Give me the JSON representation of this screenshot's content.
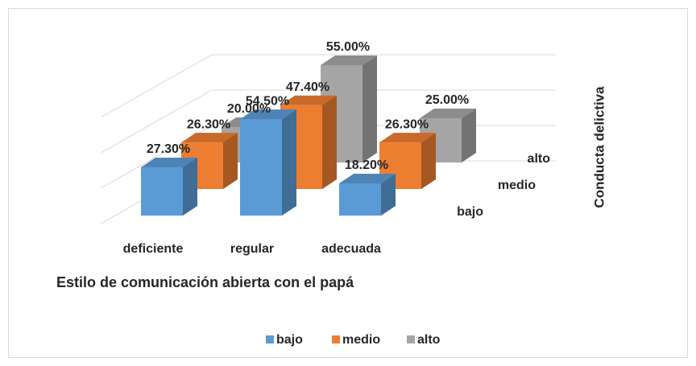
{
  "chart_data": {
    "type": "bar3d",
    "x_label": "Estilo de comunicación abierta con el papá",
    "z_label": "Conducta delictiva",
    "categories": [
      "deficiente",
      "regular",
      "adecuada"
    ],
    "series": [
      {
        "name": "bajo",
        "color": "#5b9bd5",
        "values": [
          27.3,
          54.5,
          18.2
        ],
        "value_labels": [
          "27.30%",
          "54.50%",
          "18.20%"
        ]
      },
      {
        "name": "medio",
        "color": "#ed7d31",
        "values": [
          26.3,
          47.4,
          26.3
        ],
        "value_labels": [
          "26.30%",
          "47.40%",
          "26.30%"
        ]
      },
      {
        "name": "alto",
        "color": "#a5a5a5",
        "values": [
          20.0,
          55.0,
          25.0
        ],
        "value_labels": [
          "20.00%",
          "55.00%",
          "25.00%"
        ]
      }
    ],
    "ylim": [
      0,
      60
    ],
    "yticks": [
      0,
      20,
      40,
      60
    ],
    "grid": true,
    "legend": "bottom"
  }
}
